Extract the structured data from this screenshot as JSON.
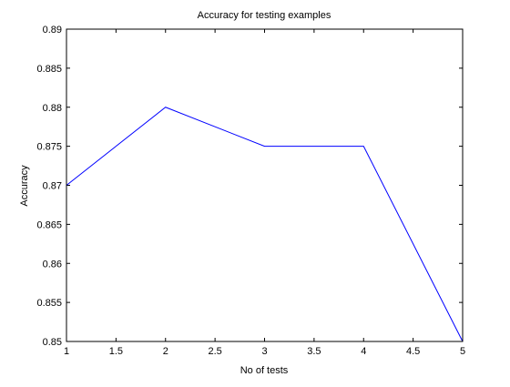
{
  "chart_data": {
    "type": "line",
    "title": "Accuracy for testing examples",
    "xlabel": "No of tests",
    "ylabel": "Accuracy",
    "xlim": [
      1,
      5
    ],
    "ylim": [
      0.85,
      0.89
    ],
    "x_ticks": [
      "1",
      "1.5",
      "2",
      "2.5",
      "3",
      "3.5",
      "4",
      "4.5",
      "5"
    ],
    "y_ticks": [
      "0.85",
      "0.855",
      "0.86",
      "0.865",
      "0.87",
      "0.875",
      "0.88",
      "0.885",
      "0.89"
    ],
    "grid": false,
    "series": [
      {
        "x": [
          1,
          2,
          3,
          4,
          5
        ],
        "y": [
          0.87,
          0.88,
          0.875,
          0.875,
          0.85
        ],
        "color": "#0000ff"
      }
    ]
  }
}
